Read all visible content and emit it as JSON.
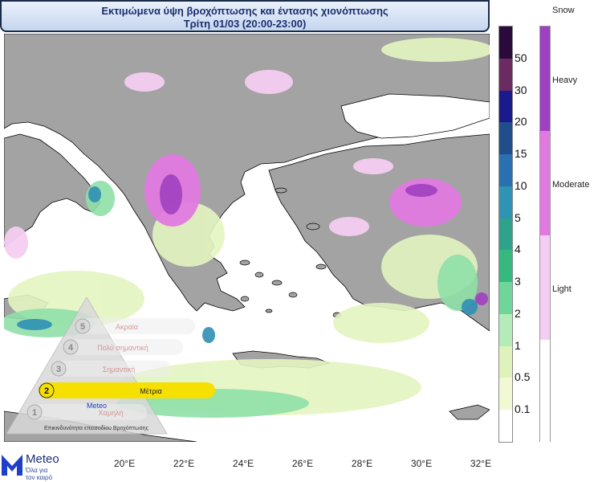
{
  "title": {
    "line1": "Εκτιμώμενα ύψη βροχόπτωσης και έντασης χιονόπτωσης",
    "line2": "Τρίτη 01/03 (20:00-23:00)"
  },
  "precip_legend": {
    "levels": [
      "50",
      "30",
      "20",
      "15",
      "10",
      "5",
      "4",
      "3",
      "2",
      "1",
      "0.5",
      "0.1"
    ],
    "colors": [
      "#2a0a3a",
      "#6b2b62",
      "#1a1a8c",
      "#1f4e8a",
      "#2a6fb0",
      "#2f93b4",
      "#2fa28c",
      "#36b97e",
      "#6fd69a",
      "#b3ecb8",
      "#dff2bb",
      "#f0f8d4",
      "#ffffff"
    ]
  },
  "snow_legend": {
    "title": "Snow",
    "levels": [
      "Heavy",
      "Moderate",
      "Light"
    ],
    "colors": [
      "#a040c0",
      "#e07ae0",
      "#f6cdf2"
    ]
  },
  "x_ticks": [
    "20°E",
    "22°E",
    "24°E",
    "26°E",
    "28°E",
    "30°E",
    "32°E"
  ],
  "risk_scale": {
    "levels": [
      "1",
      "2",
      "3",
      "4",
      "5"
    ],
    "labels": [
      "Χαμηλή",
      "Μέτρια",
      "Σημαντική",
      "Πολύ σημαντική",
      "Ακραία"
    ],
    "active": "2",
    "caption": "Επικινδυνότητα επεισοδίου Βροχόπτωσης",
    "brand": "Meteo"
  },
  "logo": {
    "name": "Meteo",
    "tagline_1": "Όλα για",
    "tagline_2": "τον καιρό"
  },
  "colors": {
    "land": "#a0a0a0",
    "sea": "#ffffff",
    "title_text": "#1b2e6e",
    "risk_active": "#f5e000"
  }
}
